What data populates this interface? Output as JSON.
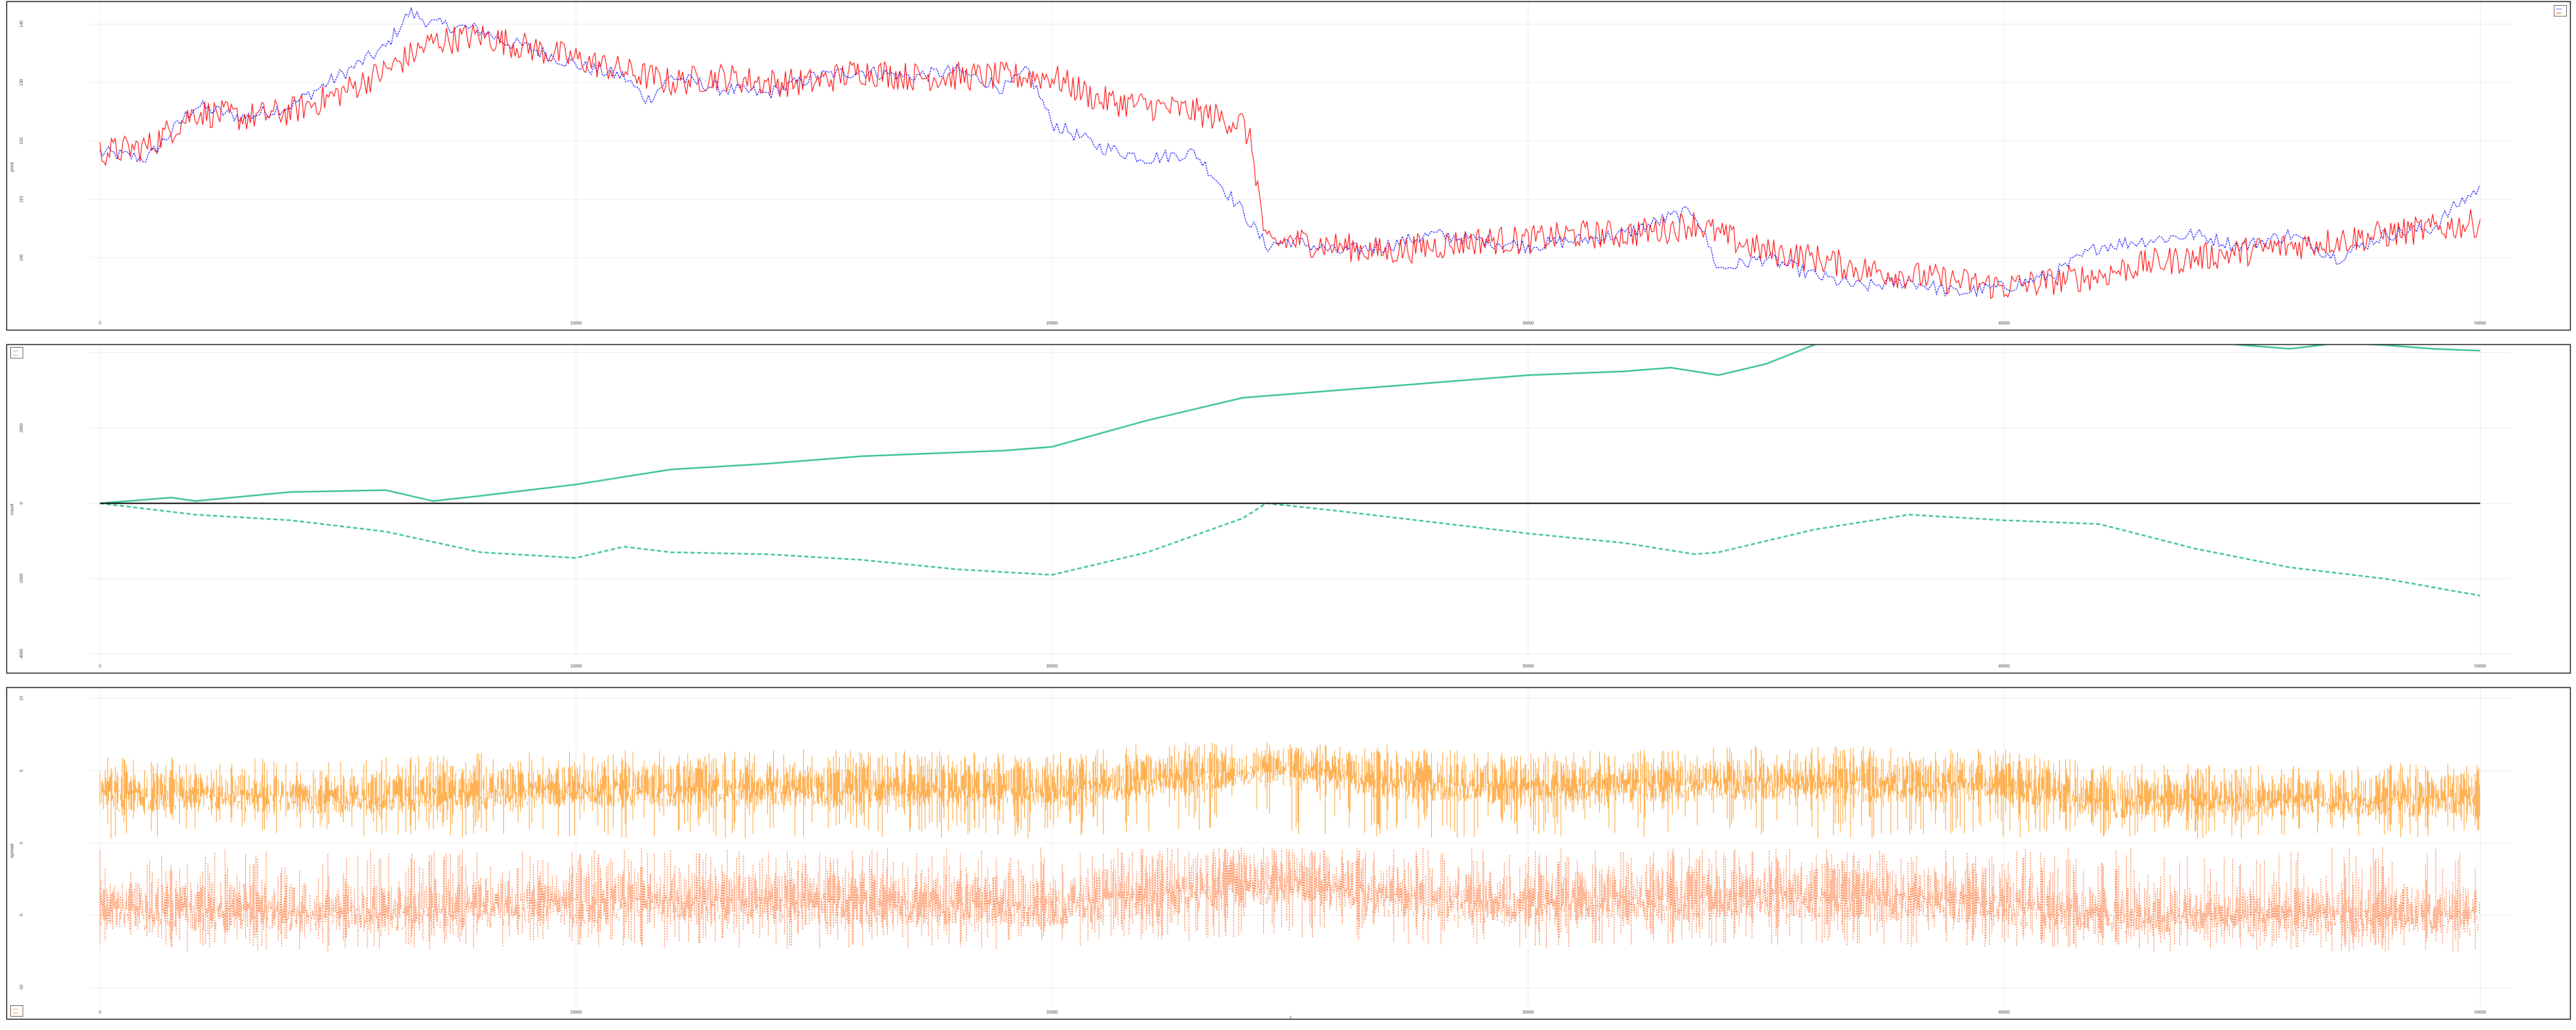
{
  "chart_data": [
    {
      "type": "line",
      "title": "",
      "xlabel": "",
      "ylabel": "price",
      "xlim": [
        0,
        50000
      ],
      "ylim": [
        90,
        142
      ],
      "x_ticks": [
        "0",
        "10000",
        "20000",
        "30000",
        "40000",
        "50000"
      ],
      "y_ticks": [
        "100",
        "110",
        "120",
        "130",
        "140"
      ],
      "grid": true,
      "legend_position": "top-right",
      "series": [
        {
          "name": "",
          "color": "#0000ff",
          "style": "dashed",
          "x": [
            0,
            1000,
            2000,
            3000,
            4000,
            5000,
            6000,
            6500,
            7000,
            8000,
            8500,
            9000,
            10000,
            11000,
            11500,
            12000,
            13000,
            14000,
            15000,
            16000,
            17000,
            18000,
            19000,
            19500,
            20000,
            21000,
            22000,
            23000,
            24000,
            24500,
            25000,
            26000,
            27000,
            28000,
            29000,
            30000,
            31000,
            32000,
            33000,
            33500,
            34000,
            35000,
            36000,
            37000,
            38000,
            39000,
            40000,
            41000,
            42000,
            43000,
            44000,
            45000,
            46000,
            47000,
            48000,
            49000,
            49500,
            50000
          ],
          "y": [
            118,
            117,
            126,
            124,
            126,
            131,
            136,
            142,
            140,
            139,
            137,
            136,
            133,
            131,
            127,
            131,
            129,
            128,
            131,
            132,
            131,
            132,
            129,
            132,
            123,
            119,
            117,
            118,
            108,
            102,
            103,
            101,
            102,
            104,
            103,
            102,
            103,
            104,
            107,
            108,
            98,
            100,
            97,
            95,
            96,
            94,
            95,
            97,
            102,
            103,
            104,
            102,
            104,
            100,
            104,
            105,
            109,
            112
          ]
        },
        {
          "name": "",
          "color": "#ff0000",
          "style": "solid",
          "x": [
            0,
            1000,
            2000,
            3000,
            4000,
            5000,
            6000,
            7000,
            8000,
            9000,
            10000,
            11000,
            12000,
            13000,
            14000,
            15000,
            16000,
            17000,
            18000,
            19000,
            20000,
            21000,
            22000,
            23000,
            24000,
            24200,
            24500,
            25000,
            26000,
            27000,
            28000,
            29000,
            30000,
            31000,
            32000,
            33000,
            33500,
            34000,
            35000,
            36000,
            37000,
            38000,
            39000,
            40000,
            41000,
            42000,
            43000,
            44000,
            45000,
            46000,
            47000,
            48000,
            49000,
            50000
          ],
          "y": [
            118,
            119,
            125,
            124,
            125,
            128,
            132,
            137,
            138,
            136,
            134,
            132,
            130,
            131,
            130,
            130,
            132,
            131,
            131,
            131,
            131,
            127,
            126,
            125,
            123,
            119,
            102,
            103,
            102,
            101,
            102,
            103,
            103,
            104,
            104,
            105,
            106,
            104,
            101,
            100,
            98,
            97,
            96,
            95,
            96,
            97,
            99,
            100,
            101,
            102,
            103,
            104,
            105,
            106
          ]
        }
      ]
    },
    {
      "type": "line",
      "title": "",
      "xlabel": "",
      "ylabel": "count",
      "xlim": [
        0,
        50000
      ],
      "ylim": [
        -4000,
        4200
      ],
      "x_ticks": [
        "0",
        "10000",
        "20000",
        "30000",
        "40000",
        "50000"
      ],
      "y_ticks": [
        "-4000",
        "-2000",
        "0",
        "2000",
        "4000"
      ],
      "grid": true,
      "legend_position": "top-left",
      "series": [
        {
          "name": "",
          "color": "#2fbf8a",
          "style": "solid",
          "x": [
            0,
            1500,
            2000,
            4000,
            6000,
            7000,
            8000,
            10000,
            12000,
            14000,
            16000,
            18000,
            19000,
            20000,
            22000,
            24000,
            25000,
            26000,
            28000,
            30000,
            32000,
            33000,
            34000,
            35000,
            36000,
            37000,
            38000,
            39000,
            40000,
            42000,
            44000,
            45000,
            46000,
            47000,
            48000,
            49000,
            50000
          ],
          "y": [
            0,
            150,
            60,
            300,
            350,
            60,
            200,
            500,
            900,
            1050,
            1250,
            1350,
            1400,
            1500,
            2200,
            2800,
            2900,
            3000,
            3200,
            3400,
            3500,
            3600,
            3400,
            3700,
            4200,
            4600,
            4500,
            4800,
            4700,
            4500,
            4300,
            4200,
            4100,
            4250,
            4200,
            4100,
            4050
          ]
        },
        {
          "name": "",
          "color": "#2fbf8a",
          "style": "dashed",
          "x": [
            0,
            2000,
            4000,
            6000,
            8000,
            10000,
            11000,
            12000,
            14000,
            16000,
            18000,
            20000,
            22000,
            24000,
            24500,
            26000,
            28000,
            30000,
            32000,
            33500,
            34000,
            36000,
            38000,
            40000,
            42000,
            44000,
            46000,
            48000,
            50000
          ],
          "y": [
            0,
            -300,
            -450,
            -750,
            -1300,
            -1450,
            -1150,
            -1300,
            -1350,
            -1500,
            -1750,
            -1900,
            -1300,
            -400,
            0,
            -200,
            -500,
            -800,
            -1050,
            -1350,
            -1300,
            -700,
            -300,
            -450,
            -550,
            -1200,
            -1700,
            -2000,
            -2450
          ]
        },
        {
          "name": "",
          "color": "#000000",
          "style": "solid",
          "x": [
            0,
            50000
          ],
          "y": [
            0,
            0
          ]
        }
      ]
    },
    {
      "type": "line",
      "title": "",
      "xlabel": "t",
      "ylabel": "spread",
      "xlim": [
        0,
        50000
      ],
      "ylim": [
        -11,
        10
      ],
      "x_ticks": [
        "0",
        "10000",
        "20000",
        "30000",
        "40000",
        "50000"
      ],
      "y_ticks": [
        "-10",
        "-5",
        "0",
        "5",
        "10"
      ],
      "grid": true,
      "legend_position": "bottom-left",
      "series": [
        {
          "name": "",
          "color": "#ff8c00",
          "style": "solid",
          "band_x": [
            0,
            5000,
            10000,
            15000,
            20000,
            22000,
            24000,
            25000,
            27000,
            30000,
            35000,
            40000,
            42000,
            45000,
            50000
          ],
          "band_low": [
            0.3,
            0.3,
            0.3,
            0.3,
            0.3,
            0.3,
            0.3,
            0.3,
            0.3,
            0.3,
            0.3,
            0.3,
            0.3,
            0.3,
            0.3
          ],
          "band_high": [
            6,
            5.8,
            6.5,
            6.5,
            6.2,
            7,
            7,
            7,
            6.8,
            6.3,
            6.8,
            6.5,
            5.5,
            5.4,
            5.6
          ],
          "band_dense_low": [
            2.2,
            2.0,
            2.5,
            2.5,
            2.4,
            3.0,
            4.0,
            4.2,
            3.0,
            2.5,
            3.0,
            2.7,
            1.7,
            1.8,
            1.8
          ],
          "band_dense_high": [
            5.0,
            4.6,
            5.4,
            5.5,
            5.3,
            6.0,
            6.3,
            6.5,
            6.0,
            5.5,
            5.8,
            5.6,
            4.6,
            4.5,
            4.8
          ]
        },
        {
          "name": "",
          "color": "#ff5000",
          "style": "dashed",
          "band_x": [
            0,
            5000,
            10000,
            15000,
            20000,
            22000,
            24000,
            25000,
            27000,
            30000,
            35000,
            40000,
            42000,
            45000,
            50000
          ],
          "band_low": [
            -7.5,
            -7.5,
            -7.2,
            -7.3,
            -7.3,
            -7,
            -6.5,
            -6.5,
            -7,
            -7.3,
            -7,
            -7.3,
            -7.5,
            -7.5,
            -7.5
          ],
          "band_high": [
            -0.3,
            -0.3,
            -0.3,
            -0.3,
            -0.3,
            -0.3,
            -0.3,
            -0.3,
            -0.3,
            -0.3,
            -0.3,
            -0.3,
            -0.3,
            -0.3,
            -0.3
          ],
          "band_dense_low": [
            -6.0,
            -6.2,
            -5.6,
            -5.6,
            -5.8,
            -5.2,
            -4.5,
            -4.3,
            -5.2,
            -5.7,
            -5.2,
            -5.6,
            -6.4,
            -6.5,
            -6.4
          ],
          "band_dense_high": [
            -2.5,
            -2.8,
            -2.0,
            -2.0,
            -2.2,
            -1.5,
            -0.6,
            -0.5,
            -1.5,
            -2.0,
            -1.6,
            -1.9,
            -3.0,
            -3.0,
            -3.0
          ]
        }
      ]
    }
  ]
}
